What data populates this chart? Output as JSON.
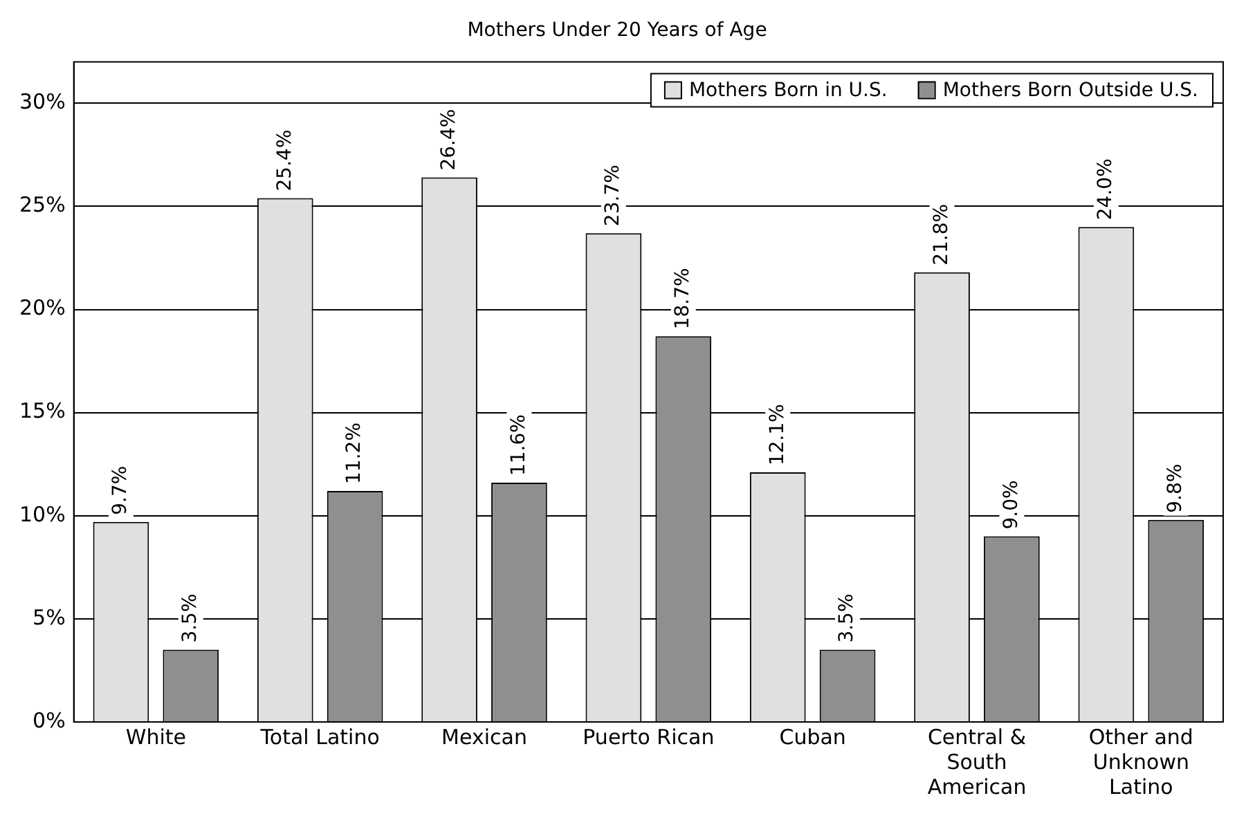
{
  "chart_data": {
    "type": "bar",
    "title": "Mothers Under 20 Years of Age",
    "categories": [
      "White",
      "Total Latino",
      "Mexican",
      "Puerto Rican",
      "Cuban",
      "Central & South American",
      "Other and Unknown Latino"
    ],
    "series": [
      {
        "name": "Mothers Born in U.S.",
        "color": "#e0e0e0",
        "values": [
          9.7,
          25.4,
          26.4,
          23.7,
          12.1,
          21.8,
          24.0
        ],
        "value_labels": [
          "9.7%",
          "25.4%",
          "26.4%",
          "23.7%",
          "12.1%",
          "21.8%",
          "24.0%"
        ]
      },
      {
        "name": "Mothers Born Outside U.S.",
        "color": "#8f8f8f",
        "values": [
          3.5,
          11.2,
          11.6,
          18.7,
          3.5,
          9.0,
          9.8
        ],
        "value_labels": [
          "3.5%",
          "11.2%",
          "11.6%",
          "18.7%",
          "3.5%",
          "9.0%",
          "9.8%"
        ]
      }
    ],
    "ylim": [
      0,
      32
    ],
    "yticks": [
      {
        "value": 0,
        "label": "0%"
      },
      {
        "value": 5,
        "label": "5%"
      },
      {
        "value": 10,
        "label": "10%"
      },
      {
        "value": 15,
        "label": "15%"
      },
      {
        "value": 20,
        "label": "20%"
      },
      {
        "value": 25,
        "label": "25%"
      },
      {
        "value": 30,
        "label": "30%"
      }
    ],
    "grid": "y",
    "legend": "top right"
  }
}
